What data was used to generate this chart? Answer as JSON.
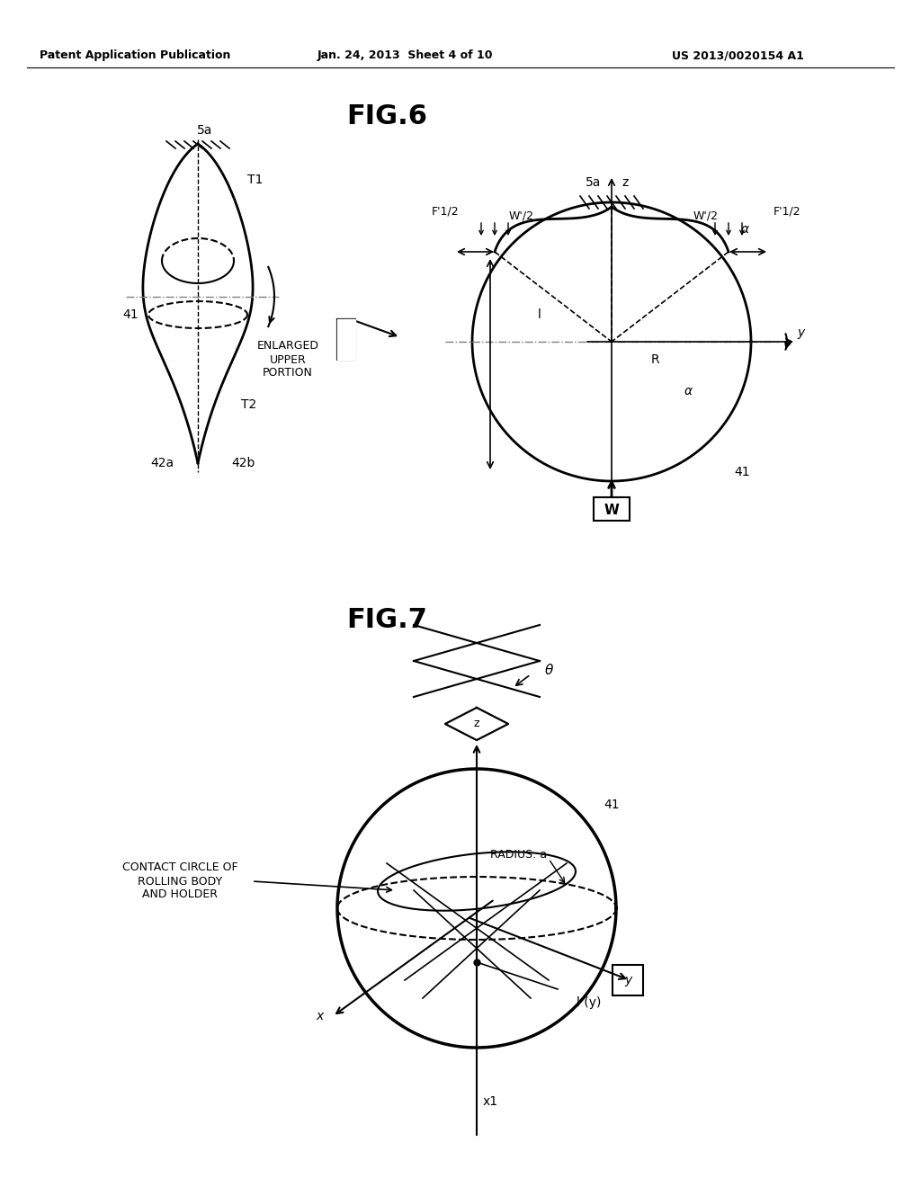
{
  "bg_color": "#ffffff",
  "text_color": "#000000",
  "line_color": "#000000",
  "header_left": "Patent Application Publication",
  "header_center": "Jan. 24, 2013  Sheet 4 of 10",
  "header_right": "US 2013/0020154 A1",
  "fig6_title": "FIG.6",
  "fig7_title": "FIG.7",
  "fig6_labels": {
    "5a_left": "5a",
    "T1": "T1",
    "T2": "T2",
    "41_left": "41",
    "42a": "42a",
    "42b": "42b",
    "enlarged": "ENLARGED\nUPPER\nPORTION",
    "5a_right": "5a",
    "z": "z",
    "F1h_left": "F'1/2",
    "W_h_left": "W'/2",
    "alpha1": "α",
    "W_h_right": "W'/2",
    "F1h_right": "F'1/2",
    "l_label": "l",
    "R_label": "R",
    "alpha2": "α",
    "y_label": "y",
    "W_label": "W",
    "41_right": "41"
  },
  "fig7_labels": {
    "theta": "θ",
    "z": "z",
    "41": "41",
    "contact_circle": "CONTACT CIRCLE OF\nROLLING BODY\nAND HOLDER",
    "radius_a": "RADIUS: a",
    "x": "x",
    "y": "y",
    "l_y": "l (y)",
    "x1": "x1"
  }
}
